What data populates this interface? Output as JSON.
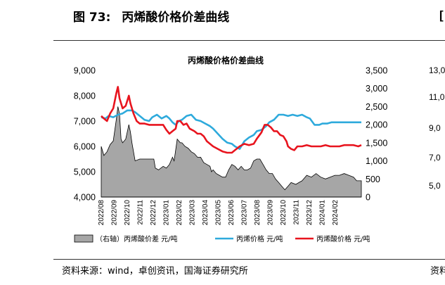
{
  "figure": {
    "number": "图 73:",
    "title": "丙烯酸价格价差曲线",
    "source": "资料来源：wind，卓创资讯，国海证券研究所"
  },
  "adjacent": {
    "title_fragment": "[",
    "source_fragment": "资料",
    "ticks": [
      "13,0",
      "11,0",
      "9,0",
      "7,0",
      "5,0"
    ]
  },
  "chart_data": {
    "type": "line",
    "title": "丙烯酸价格价差曲线",
    "y_left": {
      "lim": [
        4000,
        9000
      ],
      "ticks": [
        "4,000",
        "5,000",
        "6,000",
        "7,000",
        "8,000",
        "9,000"
      ]
    },
    "y_right": {
      "lim": [
        0,
        3500
      ],
      "ticks": [
        "0",
        "500",
        "1,000",
        "1,500",
        "2,000",
        "2,500",
        "3,000",
        "3,500"
      ]
    },
    "x_ticks": [
      "2022/08",
      "2022/09",
      "2022/10",
      "2022/11",
      "2022/12",
      "2023/01",
      "2023/02",
      "2023/03",
      "2023/04",
      "2023/05",
      "2023/06",
      "2023/07",
      "2023/08",
      "2023/09",
      "2023/10",
      "2023/11",
      "2023/12",
      "2024/01",
      "2024/02"
    ],
    "x_range": [
      2022.583,
      2024.25
    ],
    "legend": [
      {
        "label": "（右轴）丙烯酸价差  元/吨",
        "kind": "area",
        "color": "#a6a6a6"
      },
      {
        "label": "丙烯价格  元/吨",
        "kind": "line",
        "color": "#2eaadc"
      },
      {
        "label": "丙烯酸价格  元/吨",
        "kind": "line",
        "color": "#e8141e"
      }
    ],
    "series": [
      {
        "name": "丙烯价格",
        "axis": "left",
        "color": "#2eaadc",
        "points": [
          [
            2022.583,
            7150
          ],
          [
            2022.61,
            7100
          ],
          [
            2022.63,
            7200
          ],
          [
            2022.66,
            7150
          ],
          [
            2022.69,
            7250
          ],
          [
            2022.72,
            7300
          ],
          [
            2022.75,
            7420
          ],
          [
            2022.78,
            7420
          ],
          [
            2022.8,
            7350
          ],
          [
            2022.83,
            7200
          ],
          [
            2022.86,
            7050
          ],
          [
            2022.89,
            7000
          ],
          [
            2022.91,
            7150
          ],
          [
            2022.94,
            7250
          ],
          [
            2022.97,
            7100
          ],
          [
            2023.0,
            7200
          ],
          [
            2023.02,
            7100
          ],
          [
            2023.04,
            6950
          ],
          [
            2023.06,
            6850
          ],
          [
            2023.08,
            7000
          ],
          [
            2023.1,
            7050
          ],
          [
            2023.13,
            7200
          ],
          [
            2023.16,
            7250
          ],
          [
            2023.19,
            7050
          ],
          [
            2023.22,
            7000
          ],
          [
            2023.25,
            6900
          ],
          [
            2023.28,
            6800
          ],
          [
            2023.3,
            6700
          ],
          [
            2023.33,
            6500
          ],
          [
            2023.36,
            6300
          ],
          [
            2023.39,
            6150
          ],
          [
            2023.42,
            6100
          ],
          [
            2023.44,
            6000
          ],
          [
            2023.47,
            5900
          ],
          [
            2023.5,
            6200
          ],
          [
            2023.53,
            6350
          ],
          [
            2023.56,
            6450
          ],
          [
            2023.58,
            6600
          ],
          [
            2023.61,
            6650
          ],
          [
            2023.64,
            6800
          ],
          [
            2023.66,
            6950
          ],
          [
            2023.69,
            7050
          ],
          [
            2023.72,
            7250
          ],
          [
            2023.75,
            7250
          ],
          [
            2023.78,
            7200
          ],
          [
            2023.81,
            7250
          ],
          [
            2023.84,
            7200
          ],
          [
            2023.87,
            7250
          ],
          [
            2023.9,
            7150
          ],
          [
            2023.92,
            7100
          ],
          [
            2023.95,
            6850
          ],
          [
            2023.98,
            6850
          ],
          [
            2024.0,
            6900
          ],
          [
            2024.03,
            6900
          ],
          [
            2024.06,
            6950
          ],
          [
            2024.09,
            6950
          ],
          [
            2024.12,
            6950
          ],
          [
            2024.15,
            6950
          ],
          [
            2024.18,
            6950
          ],
          [
            2024.21,
            6950
          ],
          [
            2024.25,
            6950
          ]
        ]
      },
      {
        "name": "丙烯酸价格",
        "axis": "left",
        "color": "#e8141e",
        "points": [
          [
            2022.583,
            7200
          ],
          [
            2022.6,
            7100
          ],
          [
            2022.62,
            7000
          ],
          [
            2022.64,
            7300
          ],
          [
            2022.66,
            7500
          ],
          [
            2022.68,
            8100
          ],
          [
            2022.69,
            8350
          ],
          [
            2022.7,
            7900
          ],
          [
            2022.72,
            7500
          ],
          [
            2022.74,
            7600
          ],
          [
            2022.76,
            8000
          ],
          [
            2022.77,
            7700
          ],
          [
            2022.79,
            7300
          ],
          [
            2022.81,
            7000
          ],
          [
            2022.83,
            6900
          ],
          [
            2022.86,
            6900
          ],
          [
            2022.89,
            6850
          ],
          [
            2022.92,
            6850
          ],
          [
            2022.95,
            6850
          ],
          [
            2022.98,
            6850
          ],
          [
            2023.0,
            6650
          ],
          [
            2023.02,
            6500
          ],
          [
            2023.04,
            6600
          ],
          [
            2023.06,
            6700
          ],
          [
            2023.07,
            7000
          ],
          [
            2023.09,
            7000
          ],
          [
            2023.11,
            6850
          ],
          [
            2023.13,
            6900
          ],
          [
            2023.15,
            6700
          ],
          [
            2023.18,
            6600
          ],
          [
            2023.2,
            6500
          ],
          [
            2023.22,
            6500
          ],
          [
            2023.24,
            6400
          ],
          [
            2023.26,
            6200
          ],
          [
            2023.28,
            6100
          ],
          [
            2023.3,
            6000
          ],
          [
            2023.33,
            5900
          ],
          [
            2023.36,
            5800
          ],
          [
            2023.39,
            5750
          ],
          [
            2023.42,
            5750
          ],
          [
            2023.44,
            5850
          ],
          [
            2023.47,
            6000
          ],
          [
            2023.5,
            6100
          ],
          [
            2023.53,
            6050
          ],
          [
            2023.56,
            6100
          ],
          [
            2023.58,
            6300
          ],
          [
            2023.61,
            6550
          ],
          [
            2023.63,
            6850
          ],
          [
            2023.65,
            6850
          ],
          [
            2023.67,
            6750
          ],
          [
            2023.69,
            6600
          ],
          [
            2023.71,
            6600
          ],
          [
            2023.73,
            6450
          ],
          [
            2023.75,
            6400
          ],
          [
            2023.77,
            6200
          ],
          [
            2023.78,
            6000
          ],
          [
            2023.8,
            5900
          ],
          [
            2023.82,
            5850
          ],
          [
            2023.84,
            6000
          ],
          [
            2023.87,
            6000
          ],
          [
            2023.9,
            6050
          ],
          [
            2023.93,
            6000
          ],
          [
            2023.96,
            6000
          ],
          [
            2023.99,
            6000
          ],
          [
            2024.02,
            6050
          ],
          [
            2024.05,
            6000
          ],
          [
            2024.08,
            6000
          ],
          [
            2024.11,
            6000
          ],
          [
            2024.14,
            6050
          ],
          [
            2024.17,
            6050
          ],
          [
            2024.2,
            6050
          ],
          [
            2024.23,
            6000
          ],
          [
            2024.25,
            6050
          ]
        ]
      },
      {
        "name": "丙烯酸价差",
        "axis": "right",
        "color": "#a6a6a6",
        "points": [
          [
            2022.583,
            1400
          ],
          [
            2022.6,
            1150
          ],
          [
            2022.62,
            1250
          ],
          [
            2022.64,
            1450
          ],
          [
            2022.66,
            1550
          ],
          [
            2022.68,
            2150
          ],
          [
            2022.69,
            2500
          ],
          [
            2022.7,
            2300
          ],
          [
            2022.71,
            1600
          ],
          [
            2022.72,
            1500
          ],
          [
            2022.74,
            1600
          ],
          [
            2022.76,
            2000
          ],
          [
            2022.77,
            1800
          ],
          [
            2022.78,
            1500
          ],
          [
            2022.8,
            1000
          ],
          [
            2022.83,
            1050
          ],
          [
            2022.86,
            1050
          ],
          [
            2022.89,
            1050
          ],
          [
            2022.92,
            1050
          ],
          [
            2022.93,
            800
          ],
          [
            2022.95,
            750
          ],
          [
            2022.98,
            850
          ],
          [
            2023.0,
            800
          ],
          [
            2023.02,
            900
          ],
          [
            2023.04,
            1100
          ],
          [
            2023.05,
            1000
          ],
          [
            2023.07,
            1600
          ],
          [
            2023.09,
            1500
          ],
          [
            2023.1,
            1500
          ],
          [
            2023.12,
            1400
          ],
          [
            2023.14,
            1350
          ],
          [
            2023.16,
            1250
          ],
          [
            2023.18,
            1200
          ],
          [
            2023.2,
            1100
          ],
          [
            2023.22,
            1100
          ],
          [
            2023.24,
            950
          ],
          [
            2023.26,
            900
          ],
          [
            2023.28,
            850
          ],
          [
            2023.29,
            700
          ],
          [
            2023.3,
            750
          ],
          [
            2023.32,
            650
          ],
          [
            2023.34,
            600
          ],
          [
            2023.36,
            550
          ],
          [
            2023.38,
            550
          ],
          [
            2023.4,
            750
          ],
          [
            2023.42,
            900
          ],
          [
            2023.44,
            850
          ],
          [
            2023.46,
            750
          ],
          [
            2023.48,
            850
          ],
          [
            2023.5,
            750
          ],
          [
            2023.52,
            750
          ],
          [
            2023.54,
            800
          ],
          [
            2023.56,
            1000
          ],
          [
            2023.58,
            1050
          ],
          [
            2023.6,
            1050
          ],
          [
            2023.62,
            900
          ],
          [
            2023.64,
            750
          ],
          [
            2023.66,
            650
          ],
          [
            2023.68,
            650
          ],
          [
            2023.7,
            500
          ],
          [
            2023.72,
            400
          ],
          [
            2023.74,
            300
          ],
          [
            2023.76,
            200
          ],
          [
            2023.78,
            300
          ],
          [
            2023.8,
            400
          ],
          [
            2023.83,
            350
          ],
          [
            2023.85,
            400
          ],
          [
            2023.87,
            450
          ],
          [
            2023.9,
            600
          ],
          [
            2023.93,
            550
          ],
          [
            2023.96,
            650
          ],
          [
            2023.99,
            550
          ],
          [
            2024.02,
            500
          ],
          [
            2024.05,
            550
          ],
          [
            2024.08,
            600
          ],
          [
            2024.11,
            600
          ],
          [
            2024.14,
            650
          ],
          [
            2024.17,
            600
          ],
          [
            2024.2,
            550
          ],
          [
            2024.22,
            450
          ],
          [
            2024.25,
            450
          ]
        ]
      }
    ]
  }
}
